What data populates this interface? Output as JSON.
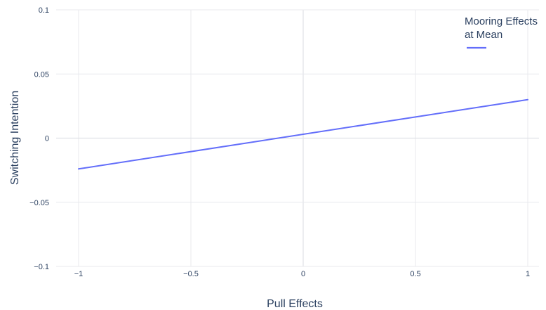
{
  "chart_data": {
    "type": "line",
    "xlabel": "Pull Effects",
    "ylabel": "Switching Intention",
    "xlim": [
      -1.1,
      1.05
    ],
    "ylim": [
      -0.1,
      0.1
    ],
    "x_ticks": [
      -1,
      -0.5,
      0,
      0.5,
      1
    ],
    "x_tick_labels": [
      "−1",
      "−0.5",
      "0",
      "0.5",
      "1"
    ],
    "y_ticks": [
      -0.1,
      -0.05,
      0,
      0.05,
      0.1
    ],
    "y_tick_labels": [
      "−0.1",
      "−0.05",
      "0",
      "0.05",
      "0.1"
    ],
    "grid": true,
    "legend": {
      "placement": "top-right",
      "title_lines": [
        "Mooring Effects",
        "at Mean"
      ]
    },
    "series": [
      {
        "color": "#636efa",
        "x": [
          -1,
          1
        ],
        "y": [
          -0.024,
          0.03
        ]
      }
    ]
  }
}
